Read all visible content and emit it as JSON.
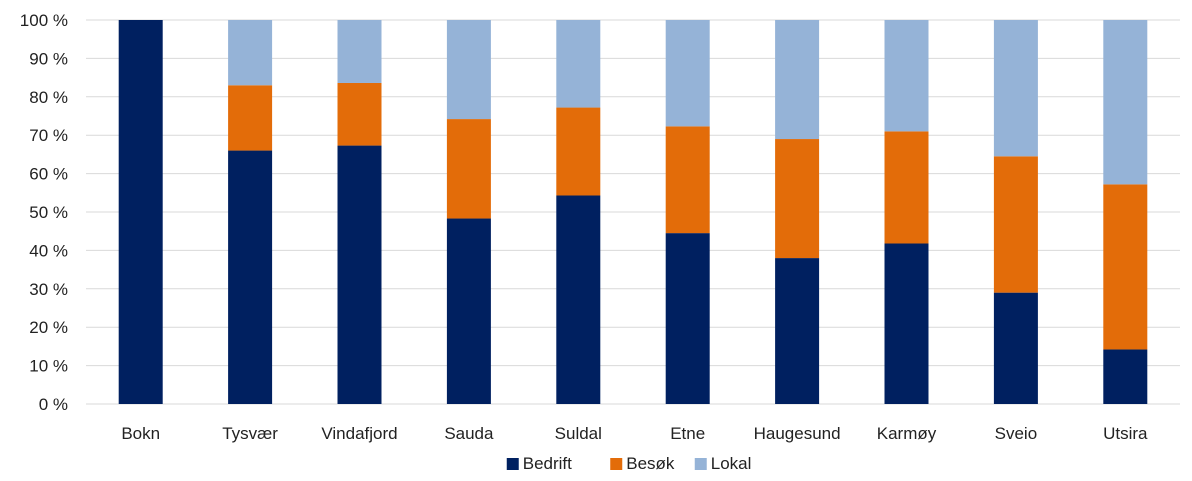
{
  "chart_data": {
    "type": "bar",
    "stacked": true,
    "categories": [
      "Bokn",
      "Tysvær",
      "Vindafjord",
      "Sauda",
      "Suldal",
      "Etne",
      "Haugesund",
      "Karmøy",
      "Sveio",
      "Utsira"
    ],
    "series": [
      {
        "name": "Bedrift",
        "color": "#002060",
        "values": [
          100,
          66,
          67.3,
          48.3,
          54.3,
          44.5,
          38,
          41.8,
          29,
          14.2
        ]
      },
      {
        "name": "Besøk",
        "color": "#E36C09",
        "values": [
          0,
          17,
          16.3,
          25.9,
          22.9,
          27.8,
          31,
          29.2,
          35.5,
          43
        ]
      },
      {
        "name": "Lokal",
        "color": "#95B3D7",
        "values": [
          0,
          17,
          16.4,
          25.8,
          22.8,
          27.7,
          31,
          29,
          35.5,
          42.8
        ]
      }
    ],
    "yticks": [
      "0 %",
      "10 %",
      "20 %",
      "30 %",
      "40 %",
      "50 %",
      "60 %",
      "70 %",
      "80 %",
      "90 %",
      "100 %"
    ],
    "ylim": [
      0,
      100
    ],
    "grid": true,
    "legend_position": "bottom"
  }
}
